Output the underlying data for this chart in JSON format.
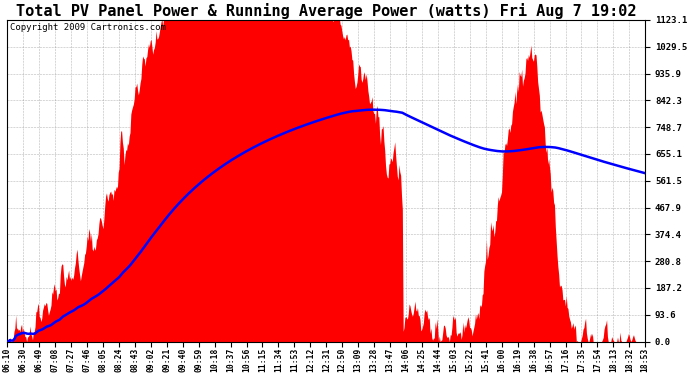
{
  "title": "Total PV Panel Power & Running Average Power (watts) Fri Aug 7 19:02",
  "copyright": "Copyright 2009 Cartronics.com",
  "yticks": [
    0.0,
    93.6,
    187.2,
    280.8,
    374.4,
    467.9,
    561.5,
    655.1,
    748.7,
    842.3,
    935.9,
    1029.5,
    1123.1
  ],
  "xtick_labels": [
    "06:10",
    "06:30",
    "06:49",
    "07:08",
    "07:27",
    "07:46",
    "08:05",
    "08:24",
    "08:43",
    "09:02",
    "09:21",
    "09:40",
    "09:59",
    "10:18",
    "10:37",
    "10:56",
    "11:15",
    "11:34",
    "11:53",
    "12:12",
    "12:31",
    "12:50",
    "13:09",
    "13:28",
    "13:47",
    "14:06",
    "14:25",
    "14:44",
    "15:03",
    "15:22",
    "15:41",
    "16:00",
    "16:19",
    "16:38",
    "16:57",
    "17:16",
    "17:35",
    "17:54",
    "18:13",
    "18:32",
    "18:53"
  ],
  "ymax": 1123.1,
  "ymin": 0.0,
  "bar_color": "#FF0000",
  "line_color": "#0000FF",
  "background_color": "#FFFFFF",
  "grid_color": "#888888",
  "title_fontsize": 11,
  "copyright_fontsize": 6.5
}
